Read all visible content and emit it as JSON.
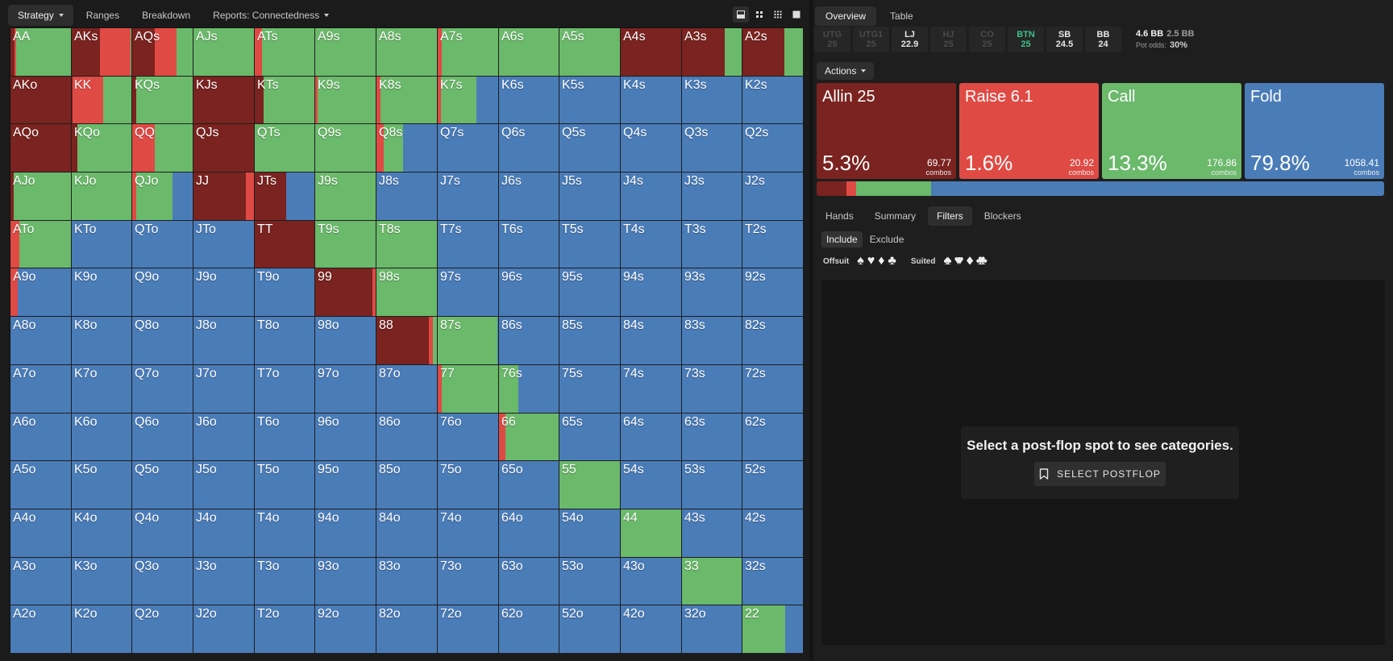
{
  "top_tabs": {
    "strategy": "Strategy",
    "ranges": "Ranges",
    "breakdown": "Breakdown",
    "reports": "Reports: Connectedness"
  },
  "view_buttons": [
    "single-view-icon",
    "two-by-two-icon",
    "three-by-three-icon",
    "fullscreen-icon"
  ],
  "colors": {
    "allin": "#7a2320",
    "raise": "#e04a44",
    "call": "#6bb96b",
    "fold": "#4a7cb8",
    "btn_accent": "#3dbf8a"
  },
  "grid": {
    "rows": [
      [
        {
          "h": "AA",
          "a": 0.06,
          "r": 0.02,
          "c": 0.92
        },
        {
          "h": "AKs",
          "a": 0.47,
          "r": 0.5,
          "c": 0.03
        },
        {
          "h": "AQs",
          "a": 0.37,
          "r": 0.35,
          "c": 0.28
        },
        {
          "h": "AJs",
          "a": 0,
          "r": 0,
          "c": 1
        },
        {
          "h": "ATs",
          "a": 0,
          "r": 0.12,
          "c": 0.88
        },
        {
          "h": "A9s",
          "a": 0,
          "r": 0,
          "c": 1
        },
        {
          "h": "A8s",
          "a": 0,
          "r": 0,
          "c": 1
        },
        {
          "h": "A7s",
          "a": 0,
          "r": 0.06,
          "c": 0.94
        },
        {
          "h": "A6s",
          "a": 0,
          "r": 0,
          "c": 1
        },
        {
          "h": "A5s",
          "a": 0,
          "r": 0,
          "c": 1
        },
        {
          "h": "A4s",
          "a": 1,
          "r": 0,
          "c": 0
        },
        {
          "h": "A3s",
          "a": 0.7,
          "r": 0,
          "c": 0.3
        },
        {
          "h": "A2s",
          "a": 0.69,
          "r": 0,
          "c": 0.31
        }
      ],
      [
        {
          "h": "AKo",
          "a": 1,
          "r": 0,
          "c": 0
        },
        {
          "h": "KK",
          "a": 0.01,
          "r": 0.51,
          "c": 0.48
        },
        {
          "h": "KQs",
          "a": 0.07,
          "r": 0,
          "c": 0.93
        },
        {
          "h": "KJs",
          "a": 1,
          "r": 0,
          "c": 0
        },
        {
          "h": "KTs",
          "a": 0.14,
          "r": 0,
          "c": 0.86
        },
        {
          "h": "K9s",
          "a": 0,
          "r": 0.04,
          "c": 0.96
        },
        {
          "h": "K8s",
          "a": 0,
          "r": 0.07,
          "c": 0.93
        },
        {
          "h": "K7s",
          "a": 0,
          "r": 0.05,
          "c": 0.58
        },
        {
          "h": "K6s",
          "a": 0,
          "r": 0,
          "c": 0
        },
        {
          "h": "K5s",
          "a": 0,
          "r": 0,
          "c": 0
        },
        {
          "h": "K4s",
          "a": 0,
          "r": 0,
          "c": 0
        },
        {
          "h": "K3s",
          "a": 0,
          "r": 0,
          "c": 0
        },
        {
          "h": "K2s",
          "a": 0,
          "r": 0,
          "c": 0
        }
      ],
      [
        {
          "h": "AQo",
          "a": 1,
          "r": 0,
          "c": 0
        },
        {
          "h": "KQo",
          "a": 0.09,
          "r": 0,
          "c": 0.91
        },
        {
          "h": "QQ",
          "a": 0,
          "r": 0.37,
          "c": 0.63
        },
        {
          "h": "QJs",
          "a": 1,
          "r": 0,
          "c": 0
        },
        {
          "h": "QTs",
          "a": 0,
          "r": 0,
          "c": 1
        },
        {
          "h": "Q9s",
          "a": 0,
          "r": 0,
          "c": 1
        },
        {
          "h": "Q8s",
          "a": 0,
          "r": 0.12,
          "c": 0.32
        },
        {
          "h": "Q7s",
          "a": 0,
          "r": 0,
          "c": 0
        },
        {
          "h": "Q6s",
          "a": 0,
          "r": 0,
          "c": 0
        },
        {
          "h": "Q5s",
          "a": 0,
          "r": 0,
          "c": 0
        },
        {
          "h": "Q4s",
          "a": 0,
          "r": 0,
          "c": 0
        },
        {
          "h": "Q3s",
          "a": 0,
          "r": 0,
          "c": 0
        },
        {
          "h": "Q2s",
          "a": 0,
          "r": 0,
          "c": 0
        }
      ],
      [
        {
          "h": "AJo",
          "a": 0.05,
          "r": 0,
          "c": 0.95
        },
        {
          "h": "KJo",
          "a": 0,
          "r": 0,
          "c": 1
        },
        {
          "h": "QJo",
          "a": 0,
          "r": 0.07,
          "c": 0.59
        },
        {
          "h": "JJ",
          "a": 0.85,
          "r": 0.15,
          "c": 0
        },
        {
          "h": "JTs",
          "a": 0.52,
          "r": 0,
          "c": 0
        },
        {
          "h": "J9s",
          "a": 0,
          "r": 0,
          "c": 1
        },
        {
          "h": "J8s",
          "a": 0,
          "r": 0,
          "c": 0
        },
        {
          "h": "J7s",
          "a": 0,
          "r": 0,
          "c": 0
        },
        {
          "h": "J6s",
          "a": 0,
          "r": 0,
          "c": 0
        },
        {
          "h": "J5s",
          "a": 0,
          "r": 0,
          "c": 0
        },
        {
          "h": "J4s",
          "a": 0,
          "r": 0,
          "c": 0
        },
        {
          "h": "J3s",
          "a": 0,
          "r": 0,
          "c": 0
        },
        {
          "h": "J2s",
          "a": 0,
          "r": 0,
          "c": 0
        }
      ],
      [
        {
          "h": "ATo",
          "a": 0,
          "r": 0.14,
          "c": 0.86
        },
        {
          "h": "KTo",
          "a": 0,
          "r": 0,
          "c": 0
        },
        {
          "h": "QTo",
          "a": 0,
          "r": 0,
          "c": 0
        },
        {
          "h": "JTo",
          "a": 0,
          "r": 0,
          "c": 0
        },
        {
          "h": "TT",
          "a": 1,
          "r": 0,
          "c": 0
        },
        {
          "h": "T9s",
          "a": 0,
          "r": 0,
          "c": 1
        },
        {
          "h": "T8s",
          "a": 0,
          "r": 0,
          "c": 1
        },
        {
          "h": "T7s",
          "a": 0,
          "r": 0,
          "c": 0
        },
        {
          "h": "T6s",
          "a": 0,
          "r": 0,
          "c": 0
        },
        {
          "h": "T5s",
          "a": 0,
          "r": 0,
          "c": 0
        },
        {
          "h": "T4s",
          "a": 0,
          "r": 0,
          "c": 0
        },
        {
          "h": "T3s",
          "a": 0,
          "r": 0,
          "c": 0
        },
        {
          "h": "T2s",
          "a": 0,
          "r": 0,
          "c": 0
        }
      ],
      [
        {
          "h": "A9o",
          "a": 0,
          "r": 0.12,
          "c": 0
        },
        {
          "h": "K9o",
          "a": 0,
          "r": 0,
          "c": 0
        },
        {
          "h": "Q9o",
          "a": 0,
          "r": 0,
          "c": 0
        },
        {
          "h": "J9o",
          "a": 0,
          "r": 0,
          "c": 0
        },
        {
          "h": "T9o",
          "a": 0,
          "r": 0,
          "c": 0
        },
        {
          "h": "99",
          "a": 0.93,
          "r": 0.07,
          "c": 0
        },
        {
          "h": "98s",
          "a": 0,
          "r": 0,
          "c": 1
        },
        {
          "h": "97s",
          "a": 0,
          "r": 0,
          "c": 0
        },
        {
          "h": "96s",
          "a": 0,
          "r": 0,
          "c": 0
        },
        {
          "h": "95s",
          "a": 0,
          "r": 0,
          "c": 0
        },
        {
          "h": "94s",
          "a": 0,
          "r": 0,
          "c": 0
        },
        {
          "h": "93s",
          "a": 0,
          "r": 0,
          "c": 0
        },
        {
          "h": "92s",
          "a": 0,
          "r": 0,
          "c": 0
        }
      ],
      [
        {
          "h": "A8o",
          "a": 0,
          "r": 0,
          "c": 0
        },
        {
          "h": "K8o",
          "a": 0,
          "r": 0,
          "c": 0
        },
        {
          "h": "Q8o",
          "a": 0,
          "r": 0,
          "c": 0
        },
        {
          "h": "J8o",
          "a": 0,
          "r": 0,
          "c": 0
        },
        {
          "h": "T8o",
          "a": 0,
          "r": 0,
          "c": 0
        },
        {
          "h": "98o",
          "a": 0,
          "r": 0,
          "c": 0
        },
        {
          "h": "88",
          "a": 0.86,
          "r": 0.07,
          "c": 0.07
        },
        {
          "h": "87s",
          "a": 0,
          "r": 0,
          "c": 0.97
        },
        {
          "h": "86s",
          "a": 0,
          "r": 0,
          "c": 0
        },
        {
          "h": "85s",
          "a": 0,
          "r": 0,
          "c": 0
        },
        {
          "h": "84s",
          "a": 0,
          "r": 0,
          "c": 0
        },
        {
          "h": "83s",
          "a": 0,
          "r": 0,
          "c": 0
        },
        {
          "h": "82s",
          "a": 0,
          "r": 0,
          "c": 0
        }
      ],
      [
        {
          "h": "A7o",
          "a": 0,
          "r": 0,
          "c": 0
        },
        {
          "h": "K7o",
          "a": 0,
          "r": 0,
          "c": 0
        },
        {
          "h": "Q7o",
          "a": 0,
          "r": 0,
          "c": 0
        },
        {
          "h": "J7o",
          "a": 0,
          "r": 0,
          "c": 0
        },
        {
          "h": "T7o",
          "a": 0,
          "r": 0,
          "c": 0
        },
        {
          "h": "97o",
          "a": 0,
          "r": 0,
          "c": 0
        },
        {
          "h": "87o",
          "a": 0,
          "r": 0,
          "c": 0
        },
        {
          "h": "77",
          "a": 0,
          "r": 0.06,
          "c": 0.94
        },
        {
          "h": "76s",
          "a": 0,
          "r": 0,
          "c": 0.32
        },
        {
          "h": "75s",
          "a": 0,
          "r": 0,
          "c": 0
        },
        {
          "h": "74s",
          "a": 0,
          "r": 0,
          "c": 0
        },
        {
          "h": "73s",
          "a": 0,
          "r": 0,
          "c": 0
        },
        {
          "h": "72s",
          "a": 0,
          "r": 0,
          "c": 0
        }
      ],
      [
        {
          "h": "A6o",
          "a": 0,
          "r": 0,
          "c": 0
        },
        {
          "h": "K6o",
          "a": 0,
          "r": 0,
          "c": 0
        },
        {
          "h": "Q6o",
          "a": 0,
          "r": 0,
          "c": 0
        },
        {
          "h": "J6o",
          "a": 0,
          "r": 0,
          "c": 0
        },
        {
          "h": "T6o",
          "a": 0,
          "r": 0,
          "c": 0
        },
        {
          "h": "96o",
          "a": 0,
          "r": 0,
          "c": 0
        },
        {
          "h": "86o",
          "a": 0,
          "r": 0,
          "c": 0
        },
        {
          "h": "76o",
          "a": 0,
          "r": 0,
          "c": 0
        },
        {
          "h": "66",
          "a": 0,
          "r": 0.1,
          "c": 0.9
        },
        {
          "h": "65s",
          "a": 0,
          "r": 0,
          "c": 0
        },
        {
          "h": "64s",
          "a": 0,
          "r": 0,
          "c": 0
        },
        {
          "h": "63s",
          "a": 0,
          "r": 0,
          "c": 0
        },
        {
          "h": "62s",
          "a": 0,
          "r": 0,
          "c": 0
        }
      ],
      [
        {
          "h": "A5o",
          "a": 0,
          "r": 0,
          "c": 0
        },
        {
          "h": "K5o",
          "a": 0,
          "r": 0,
          "c": 0
        },
        {
          "h": "Q5o",
          "a": 0,
          "r": 0,
          "c": 0
        },
        {
          "h": "J5o",
          "a": 0,
          "r": 0,
          "c": 0
        },
        {
          "h": "T5o",
          "a": 0,
          "r": 0,
          "c": 0
        },
        {
          "h": "95o",
          "a": 0,
          "r": 0,
          "c": 0
        },
        {
          "h": "85o",
          "a": 0,
          "r": 0,
          "c": 0
        },
        {
          "h": "75o",
          "a": 0,
          "r": 0,
          "c": 0
        },
        {
          "h": "65o",
          "a": 0,
          "r": 0,
          "c": 0
        },
        {
          "h": "55",
          "a": 0,
          "r": 0,
          "c": 1
        },
        {
          "h": "54s",
          "a": 0,
          "r": 0,
          "c": 0
        },
        {
          "h": "53s",
          "a": 0,
          "r": 0,
          "c": 0
        },
        {
          "h": "52s",
          "a": 0,
          "r": 0,
          "c": 0
        }
      ],
      [
        {
          "h": "A4o",
          "a": 0,
          "r": 0,
          "c": 0
        },
        {
          "h": "K4o",
          "a": 0,
          "r": 0,
          "c": 0
        },
        {
          "h": "Q4o",
          "a": 0,
          "r": 0,
          "c": 0
        },
        {
          "h": "J4o",
          "a": 0,
          "r": 0,
          "c": 0
        },
        {
          "h": "T4o",
          "a": 0,
          "r": 0,
          "c": 0
        },
        {
          "h": "94o",
          "a": 0,
          "r": 0,
          "c": 0
        },
        {
          "h": "84o",
          "a": 0,
          "r": 0,
          "c": 0
        },
        {
          "h": "74o",
          "a": 0,
          "r": 0,
          "c": 0
        },
        {
          "h": "64o",
          "a": 0,
          "r": 0,
          "c": 0
        },
        {
          "h": "54o",
          "a": 0,
          "r": 0,
          "c": 0
        },
        {
          "h": "44",
          "a": 0,
          "r": 0,
          "c": 1
        },
        {
          "h": "43s",
          "a": 0,
          "r": 0,
          "c": 0
        },
        {
          "h": "42s",
          "a": 0,
          "r": 0,
          "c": 0
        }
      ],
      [
        {
          "h": "A3o",
          "a": 0,
          "r": 0,
          "c": 0
        },
        {
          "h": "K3o",
          "a": 0,
          "r": 0,
          "c": 0
        },
        {
          "h": "Q3o",
          "a": 0,
          "r": 0,
          "c": 0
        },
        {
          "h": "J3o",
          "a": 0,
          "r": 0,
          "c": 0
        },
        {
          "h": "T3o",
          "a": 0,
          "r": 0,
          "c": 0
        },
        {
          "h": "93o",
          "a": 0,
          "r": 0,
          "c": 0
        },
        {
          "h": "83o",
          "a": 0,
          "r": 0,
          "c": 0
        },
        {
          "h": "73o",
          "a": 0,
          "r": 0,
          "c": 0
        },
        {
          "h": "63o",
          "a": 0,
          "r": 0,
          "c": 0
        },
        {
          "h": "53o",
          "a": 0,
          "r": 0,
          "c": 0
        },
        {
          "h": "43o",
          "a": 0,
          "r": 0,
          "c": 0
        },
        {
          "h": "33",
          "a": 0,
          "r": 0,
          "c": 1
        },
        {
          "h": "32s",
          "a": 0,
          "r": 0,
          "c": 0
        }
      ],
      [
        {
          "h": "A2o",
          "a": 0,
          "r": 0,
          "c": 0
        },
        {
          "h": "K2o",
          "a": 0,
          "r": 0,
          "c": 0
        },
        {
          "h": "Q2o",
          "a": 0,
          "r": 0,
          "c": 0
        },
        {
          "h": "J2o",
          "a": 0,
          "r": 0,
          "c": 0
        },
        {
          "h": "T2o",
          "a": 0,
          "r": 0,
          "c": 0
        },
        {
          "h": "92o",
          "a": 0,
          "r": 0,
          "c": 0
        },
        {
          "h": "82o",
          "a": 0,
          "r": 0,
          "c": 0
        },
        {
          "h": "72o",
          "a": 0,
          "r": 0,
          "c": 0
        },
        {
          "h": "62o",
          "a": 0,
          "r": 0,
          "c": 0
        },
        {
          "h": "52o",
          "a": 0,
          "r": 0,
          "c": 0
        },
        {
          "h": "42o",
          "a": 0,
          "r": 0,
          "c": 0
        },
        {
          "h": "32o",
          "a": 0,
          "r": 0,
          "c": 0
        },
        {
          "h": "22",
          "a": 0,
          "r": 0,
          "c": 0.7
        }
      ]
    ]
  },
  "right_tabs": {
    "overview": "Overview",
    "table": "Table"
  },
  "positions": [
    {
      "name": "UTG",
      "stack": "25",
      "state": "off"
    },
    {
      "name": "UTG1",
      "stack": "25",
      "state": "off"
    },
    {
      "name": "LJ",
      "stack": "22.9",
      "state": "on"
    },
    {
      "name": "HJ",
      "stack": "25",
      "state": "off"
    },
    {
      "name": "CO",
      "stack": "25",
      "state": "off"
    },
    {
      "name": "BTN",
      "stack": "25",
      "state": "btn"
    },
    {
      "name": "SB",
      "stack": "24.5",
      "state": "on"
    },
    {
      "name": "BB",
      "stack": "24",
      "state": "on"
    }
  ],
  "pot": {
    "pot": "4.6 BB",
    "call": "2.5 BB",
    "odds_label": "Pot odds:",
    "odds": "30%"
  },
  "actions_label": "Actions",
  "actions": [
    {
      "key": "allin",
      "name": "Allin 25",
      "pct": "5.3%",
      "combos": "69.77",
      "combos_label": "combos",
      "frac": 0.053
    },
    {
      "key": "raise",
      "name": "Raise 6.1",
      "pct": "1.6%",
      "combos": "20.92",
      "combos_label": "combos",
      "frac": 0.016
    },
    {
      "key": "call",
      "name": "Call",
      "pct": "13.3%",
      "combos": "176.86",
      "combos_label": "combos",
      "frac": 0.133
    },
    {
      "key": "fold",
      "name": "Fold",
      "pct": "79.8%",
      "combos": "1058.41",
      "combos_label": "combos",
      "frac": 0.798
    }
  ],
  "lower_tabs": {
    "hands": "Hands",
    "summary": "Summary",
    "filters": "Filters",
    "blockers": "Blockers"
  },
  "filters": {
    "include": "Include",
    "exclude": "Exclude",
    "offsuit_label": "Offsuit",
    "suited_label": "Suited",
    "suits": [
      "♠",
      "♥",
      "♦",
      "♣"
    ],
    "suited_suits": [
      "♠♠",
      "♥♥",
      "♦♦",
      "♣♣"
    ]
  },
  "empty_state": {
    "message": "Select a post-flop spot to see categories.",
    "button": "SELECT POSTFLOP"
  }
}
